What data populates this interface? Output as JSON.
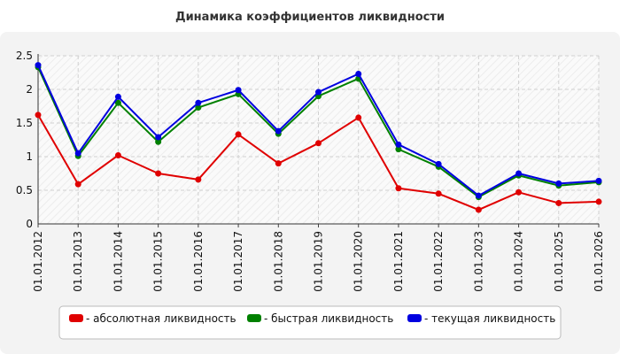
{
  "chart_data": {
    "type": "line",
    "title": "Динамика коэффициентов ликвидности",
    "xlabel": "",
    "ylabel": "",
    "categories": [
      "01.01.2012",
      "01.01.2013",
      "01.01.2014",
      "01.01.2015",
      "01.01.2016",
      "01.01.2017",
      "01.01.2018",
      "01.01.2019",
      "01.01.2020",
      "01.01.2021",
      "01.01.2022",
      "01.01.2023",
      "01.01.2024",
      "01.01.2025",
      "01.01.2026"
    ],
    "ylim": [
      0,
      2.5
    ],
    "yticks": [
      "0",
      "0.5",
      "1",
      "1.5",
      "2",
      "2.5"
    ],
    "grid": true,
    "legend_position": "bottom",
    "series": [
      {
        "name": "- абсолютная ликвидность",
        "color": "#e00000",
        "values": [
          1.62,
          0.59,
          1.02,
          0.75,
          0.66,
          1.33,
          0.9,
          1.2,
          1.58,
          0.53,
          0.45,
          0.21,
          0.47,
          0.31,
          0.33
        ]
      },
      {
        "name": "- быстрая ликвидность",
        "color": "#008000",
        "values": [
          2.33,
          1.01,
          1.8,
          1.22,
          1.73,
          1.93,
          1.34,
          1.9,
          2.16,
          1.11,
          0.85,
          0.4,
          0.72,
          0.57,
          0.62
        ]
      },
      {
        "name": "- текущая ликвидность",
        "color": "#0000e0",
        "values": [
          2.36,
          1.05,
          1.89,
          1.29,
          1.8,
          1.99,
          1.38,
          1.96,
          2.23,
          1.18,
          0.89,
          0.42,
          0.75,
          0.6,
          0.64
        ]
      }
    ]
  }
}
